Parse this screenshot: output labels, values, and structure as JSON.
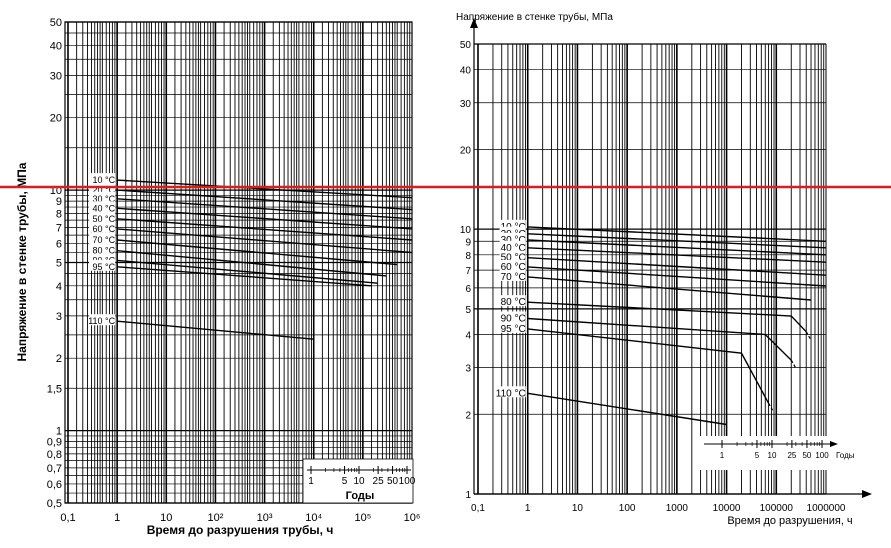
{
  "chart_data": [
    {
      "type": "line",
      "xlabel": "Время до разрушения трубы, ч",
      "ylabel": "Напряжение в стенке трубы, МПа",
      "xscale": "log",
      "yscale": "log",
      "xlim": [
        0.05,
        1000000
      ],
      "ylim": [
        0.5,
        50
      ],
      "x_ticks": [
        "0,1",
        "1",
        "10",
        "10²",
        "10³",
        "10⁴",
        "10⁵",
        "10⁶"
      ],
      "y_ticks": [
        "0,5",
        "0,6",
        "0,7",
        "0,8",
        "0,9",
        "1",
        "1,5",
        "2",
        "3",
        "4",
        "5",
        "6",
        "7",
        "8",
        "9",
        "10",
        "20",
        "30",
        "40",
        "50"
      ],
      "grid": true,
      "inset": {
        "label": "Годы",
        "ticks": [
          "1",
          "5",
          "10",
          "25",
          "50",
          "100"
        ]
      },
      "series": [
        {
          "name": "10 °C",
          "x": [
            1,
            1000000
          ],
          "y": [
            11.0,
            9.3
          ]
        },
        {
          "name": "20 °C",
          "x": [
            1,
            1000000
          ],
          "y": [
            10.0,
            8.3
          ]
        },
        {
          "name": "30 °C",
          "x": [
            1,
            1000000
          ],
          "y": [
            9.2,
            7.6
          ]
        },
        {
          "name": "40 °C",
          "x": [
            1,
            1000000
          ],
          "y": [
            8.4,
            6.9
          ]
        },
        {
          "name": "50 °C",
          "x": [
            1,
            1000000
          ],
          "y": [
            7.6,
            6.2
          ]
        },
        {
          "name": "60 °C",
          "x": [
            1,
            1000000
          ],
          "y": [
            6.9,
            5.5
          ]
        },
        {
          "name": "70 °C",
          "x": [
            1,
            500000
          ],
          "y": [
            6.2,
            4.9
          ]
        },
        {
          "name": "80 °C",
          "x": [
            1,
            300000
          ],
          "y": [
            5.6,
            4.4
          ]
        },
        {
          "name": "90 °C",
          "x": [
            1,
            200000
          ],
          "y": [
            5.1,
            4.1
          ]
        },
        {
          "name": "95 °C",
          "x": [
            1,
            150000
          ],
          "y": [
            4.8,
            4.0
          ]
        },
        {
          "name": "110 °C",
          "x": [
            1,
            10000
          ],
          "y": [
            2.85,
            2.4
          ]
        }
      ]
    },
    {
      "type": "line",
      "ylabel": "Напряжение в стенке трубы, МПа",
      "xlabel": "Время до разрушения, ч",
      "xscale": "log",
      "yscale": "log",
      "xlim": [
        0.1,
        1000000
      ],
      "ylim": [
        1,
        50
      ],
      "x_ticks": [
        "0,1",
        "1",
        "10",
        "100",
        "1000",
        "10000",
        "100000",
        "1000000"
      ],
      "y_ticks": [
        "1",
        "2",
        "3",
        "4",
        "5",
        "6",
        "7",
        "8",
        "9",
        "10",
        "20",
        "30",
        "40",
        "50"
      ],
      "grid": true,
      "inset": {
        "label": "Годы",
        "ticks": [
          "1",
          "5",
          "10",
          "25",
          "50",
          "100"
        ]
      },
      "series": [
        {
          "name": "10 °C",
          "x": [
            1,
            1000000
          ],
          "y": [
            10.2,
            9.0
          ]
        },
        {
          "name": "20 °C",
          "x": [
            1,
            1000000
          ],
          "y": [
            9.6,
            8.5
          ]
        },
        {
          "name": "30 °C",
          "x": [
            1,
            1000000
          ],
          "y": [
            9.1,
            8.0
          ]
        },
        {
          "name": "40 °C",
          "x": [
            1,
            1000000
          ],
          "y": [
            8.5,
            7.5
          ]
        },
        {
          "name": "50 °C",
          "x": [
            1,
            1000000
          ],
          "y": [
            7.8,
            6.7
          ]
        },
        {
          "name": "60 °C",
          "x": [
            1,
            1000000
          ],
          "y": [
            7.2,
            6.1
          ]
        },
        {
          "name": "70 °C",
          "x": [
            1,
            500000
          ],
          "y": [
            6.6,
            5.4
          ]
        },
        {
          "name": "80 °C",
          "x": [
            1,
            200000,
            400000
          ],
          "y": [
            5.3,
            4.7,
            4.1
          ]
        },
        {
          "name": "90 °C",
          "x": [
            1,
            60000,
            200000
          ],
          "y": [
            4.6,
            4.0,
            3.2
          ]
        },
        {
          "name": "95 °C",
          "x": [
            1,
            20000,
            70000
          ],
          "y": [
            4.2,
            3.4,
            2.2
          ]
        },
        {
          "name": "110 °C",
          "x": [
            1,
            10000
          ],
          "y": [
            2.4,
            1.83
          ]
        }
      ]
    }
  ],
  "annotations": {
    "red_line_color": "#d81e1e"
  }
}
